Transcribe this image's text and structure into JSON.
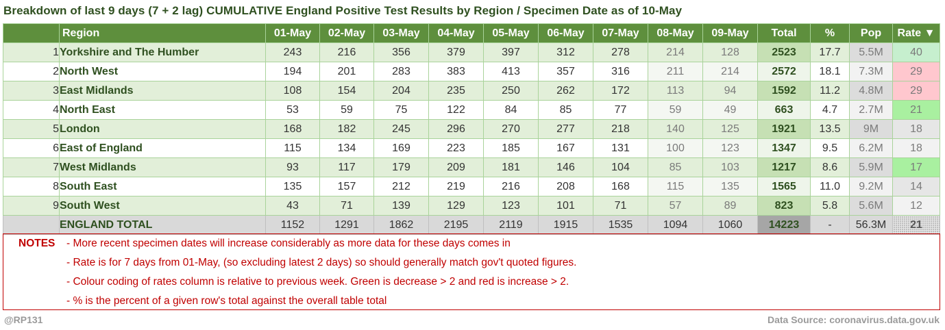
{
  "title": "Breakdown of last 9 days (7 + 2 lag) CUMULATIVE England Positive Test Results by Region / Specimen Date as of 10-May",
  "columns": {
    "rank": "",
    "region": "Region",
    "d1": "01-May",
    "d2": "02-May",
    "d3": "03-May",
    "d4": "04-May",
    "d5": "05-May",
    "d6": "06-May",
    "d7": "07-May",
    "d8": "08-May",
    "d9": "09-May",
    "total": "Total",
    "pct": "%",
    "pop": "Pop",
    "rate": "Rate ▼"
  },
  "rows": [
    {
      "rank": "1",
      "region": "Yorkshire and The Humber",
      "d1": "243",
      "d2": "216",
      "d3": "356",
      "d4": "379",
      "d5": "397",
      "d6": "312",
      "d7": "278",
      "d8": "214",
      "d9": "128",
      "total": "2523",
      "pct": "17.7",
      "pop": "5.5M",
      "rate": "40",
      "rate_color": "#c6efce"
    },
    {
      "rank": "2",
      "region": "North West",
      "d1": "194",
      "d2": "201",
      "d3": "283",
      "d4": "383",
      "d5": "413",
      "d6": "357",
      "d7": "316",
      "d8": "211",
      "d9": "214",
      "total": "2572",
      "pct": "18.1",
      "pop": "7.3M",
      "rate": "29",
      "rate_color": "#ffc7ce"
    },
    {
      "rank": "3",
      "region": "East Midlands",
      "d1": "108",
      "d2": "154",
      "d3": "204",
      "d4": "235",
      "d5": "250",
      "d6": "262",
      "d7": "172",
      "d8": "113",
      "d9": "94",
      "total": "1592",
      "pct": "11.2",
      "pop": "4.8M",
      "rate": "29",
      "rate_color": "#ffc7ce"
    },
    {
      "rank": "4",
      "region": "North East",
      "d1": "53",
      "d2": "59",
      "d3": "75",
      "d4": "122",
      "d5": "84",
      "d6": "85",
      "d7": "77",
      "d8": "59",
      "d9": "49",
      "total": "663",
      "pct": "4.7",
      "pop": "2.7M",
      "rate": "21",
      "rate_color": "#a9f0a0"
    },
    {
      "rank": "5",
      "region": "London",
      "d1": "168",
      "d2": "182",
      "d3": "245",
      "d4": "296",
      "d5": "270",
      "d6": "277",
      "d7": "218",
      "d8": "140",
      "d9": "125",
      "total": "1921",
      "pct": "13.5",
      "pop": "9M",
      "rate": "18",
      "rate_color": "#e6e6e6"
    },
    {
      "rank": "6",
      "region": "East of England",
      "d1": "115",
      "d2": "134",
      "d3": "169",
      "d4": "223",
      "d5": "185",
      "d6": "167",
      "d7": "131",
      "d8": "100",
      "d9": "123",
      "total": "1347",
      "pct": "9.5",
      "pop": "6.2M",
      "rate": "18",
      "rate_color": "#f2f2f2"
    },
    {
      "rank": "7",
      "region": "West Midlands",
      "d1": "93",
      "d2": "117",
      "d3": "179",
      "d4": "209",
      "d5": "181",
      "d6": "146",
      "d7": "104",
      "d8": "85",
      "d9": "103",
      "total": "1217",
      "pct": "8.6",
      "pop": "5.9M",
      "rate": "17",
      "rate_color": "#a9f0a0"
    },
    {
      "rank": "8",
      "region": "South East",
      "d1": "135",
      "d2": "157",
      "d3": "212",
      "d4": "219",
      "d5": "216",
      "d6": "208",
      "d7": "168",
      "d8": "115",
      "d9": "135",
      "total": "1565",
      "pct": "11.0",
      "pop": "9.2M",
      "rate": "14",
      "rate_color": "#e6e6e6"
    },
    {
      "rank": "9",
      "region": "South West",
      "d1": "43",
      "d2": "71",
      "d3": "139",
      "d4": "129",
      "d5": "123",
      "d6": "101",
      "d7": "71",
      "d8": "57",
      "d9": "89",
      "total": "823",
      "pct": "5.8",
      "pop": "5.6M",
      "rate": "12",
      "rate_color": "#f2f2f2"
    }
  ],
  "total_row": {
    "region": "ENGLAND TOTAL",
    "d1": "1152",
    "d2": "1291",
    "d3": "1862",
    "d4": "2195",
    "d5": "2119",
    "d6": "1915",
    "d7": "1535",
    "d8": "1094",
    "d9": "1060",
    "total": "14223",
    "pct": "-",
    "pop": "56.3M",
    "rate": "21"
  },
  "notes": {
    "label": "NOTES",
    "items": [
      "- More recent specimen dates will increase considerably as more data for these days comes in",
      "- Rate is for 7 days from 01-May, (so excluding latest 2 days) so should generally match gov't quoted figures.",
      "- Colour coding of rates column is relative to previous week. Green is decrease > 2 and red is increase > 2.",
      "- % is the percent of a given row's total against the overall table total"
    ]
  },
  "footer": {
    "handle": "@RP131",
    "source": "Data Source: coronavirus.data.gov.uk"
  }
}
